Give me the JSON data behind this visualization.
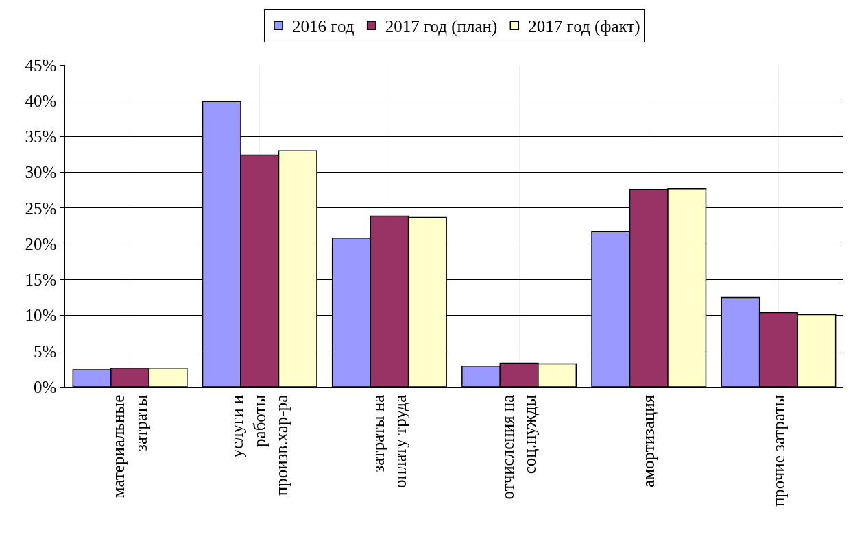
{
  "chart_data": {
    "type": "bar",
    "categories": [
      "материальные затраты",
      "услуги и работы произв.хар-ра",
      "затраты на оплату труда",
      "отчисления на соц.нужды",
      "амортизация",
      "прочие затраты"
    ],
    "series": [
      {
        "name": "2016 год",
        "color": "#9999ff",
        "values": [
          2.4,
          39.9,
          20.8,
          2.9,
          21.7,
          12.5
        ]
      },
      {
        "name": "2017 год (план)",
        "color": "#993366",
        "values": [
          2.6,
          32.4,
          23.9,
          3.3,
          27.6,
          10.4
        ]
      },
      {
        "name": "2017 год (факт)",
        "color": "#ffffcc",
        "values": [
          2.6,
          33.0,
          23.7,
          3.2,
          27.7,
          10.1
        ]
      }
    ],
    "ylim": [
      0,
      45
    ],
    "yticks": [
      {
        "value": 0,
        "label": "0%"
      },
      {
        "value": 5,
        "label": "5%"
      },
      {
        "value": 10,
        "label": "10%"
      },
      {
        "value": 15,
        "label": "15%"
      },
      {
        "value": 20,
        "label": "20%"
      },
      {
        "value": 25,
        "label": "25%"
      },
      {
        "value": 30,
        "label": "30%"
      },
      {
        "value": 35,
        "label": "35%"
      },
      {
        "value": 40,
        "label": "40%"
      },
      {
        "value": 45,
        "label": "45%"
      }
    ],
    "grid": true,
    "legend": "top"
  }
}
